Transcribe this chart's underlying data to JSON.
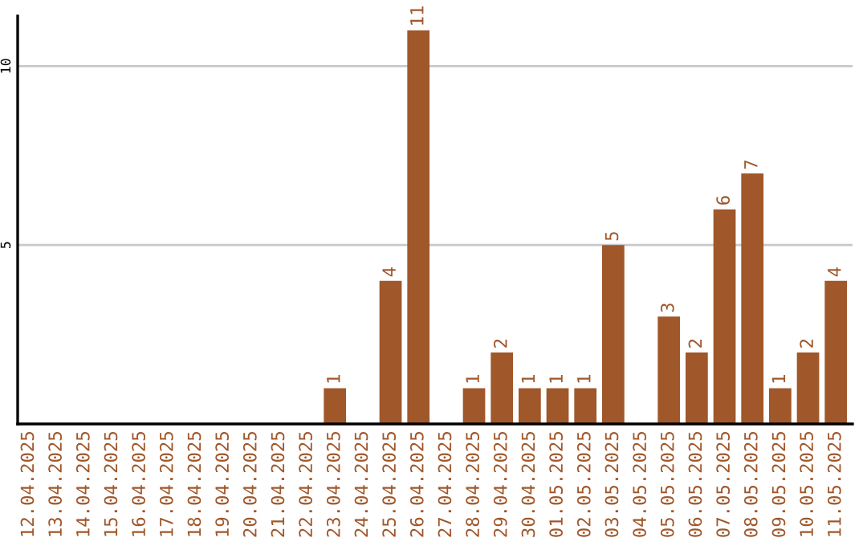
{
  "chart_data": {
    "type": "bar",
    "categories": [
      "12.04.2025",
      "13.04.2025",
      "14.04.2025",
      "15.04.2025",
      "16.04.2025",
      "17.04.2025",
      "18.04.2025",
      "19.04.2025",
      "20.04.2025",
      "21.04.2025",
      "22.04.2025",
      "23.04.2025",
      "24.04.2025",
      "25.04.2025",
      "26.04.2025",
      "27.04.2025",
      "28.04.2025",
      "29.04.2025",
      "30.04.2025",
      "01.05.2025",
      "02.05.2025",
      "03.05.2025",
      "04.05.2025",
      "05.05.2025",
      "06.05.2025",
      "07.05.2025",
      "08.05.2025",
      "09.05.2025",
      "10.05.2025",
      "11.05.2025"
    ],
    "values": [
      0,
      0,
      0,
      0,
      0,
      0,
      0,
      0,
      0,
      0,
      0,
      1,
      0,
      4,
      11,
      0,
      1,
      2,
      1,
      1,
      1,
      5,
      0,
      3,
      2,
      6,
      7,
      1,
      2,
      4
    ],
    "value_labels": [
      null,
      null,
      null,
      null,
      null,
      null,
      null,
      null,
      null,
      null,
      null,
      "1",
      null,
      "4",
      "11",
      null,
      "1",
      "2",
      "1",
      "1",
      "1",
      "5",
      null,
      "3",
      "2",
      "6",
      "7",
      "1",
      "2",
      "4"
    ],
    "color": "#a0572a",
    "ylim": [
      0,
      11.4
    ],
    "yticks": [
      5,
      10
    ],
    "grid": "y"
  }
}
